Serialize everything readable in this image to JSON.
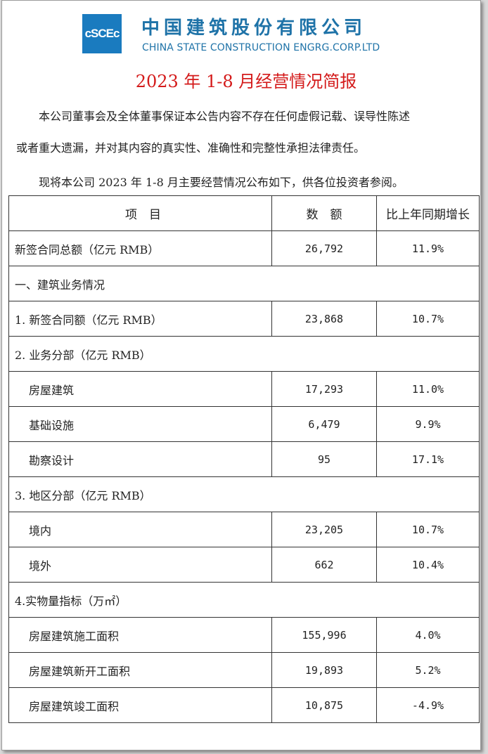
{
  "header": {
    "logo_text": "cSCEc",
    "company_cn": "中国建筑股份有限公司",
    "company_en": "CHINA STATE CONSTRUCTION ENGRG.CORP.LTD",
    "title": "2023 年 1-8 月经营情况简报"
  },
  "body": {
    "statement_line1": "本公司董事会及全体董事保证本公告内容不存在任何虚假记载、误导性陈述",
    "statement_line2": "或者重大遗漏，并对其内容的真实性、准确性和完整性承担法律责任。",
    "intro": "现将本公司 2023 年 1-8 月主要经营情况公布如下，供各位投资者参阅。"
  },
  "table": {
    "headers": [
      "项　目",
      "数　额",
      "比上年同期增长"
    ],
    "rows": [
      {
        "item": "新签合同总额（亿元 RMB）",
        "value": "26,792",
        "growth": "11.9%"
      },
      {
        "item": "一、建筑业务情况",
        "value": "",
        "growth": "",
        "section": true
      },
      {
        "item": "1.  新签合同额（亿元 RMB）",
        "value": "23,868",
        "growth": "10.7%"
      },
      {
        "item": "2.  业务分部（亿元 RMB）",
        "value": "",
        "growth": "",
        "section": true
      },
      {
        "item": "房屋建筑",
        "value": "17,293",
        "growth": "11.0%",
        "indent": true
      },
      {
        "item": "基础设施",
        "value": "6,479",
        "growth": "9.9%",
        "indent": true
      },
      {
        "item": "勘察设计",
        "value": "95",
        "growth": "17.1%",
        "indent": true
      },
      {
        "item": "3.  地区分部（亿元 RMB）",
        "value": "",
        "growth": "",
        "section": true
      },
      {
        "item": "境内",
        "value": "23,205",
        "growth": "10.7%",
        "indent": true
      },
      {
        "item": "境外",
        "value": "662",
        "growth": "10.4%",
        "indent": true
      },
      {
        "item": "4.实物量指标（万㎡）",
        "value": "",
        "growth": "",
        "section": true
      },
      {
        "item": "房屋建筑施工面积",
        "value": "155,996",
        "growth": "4.0%",
        "indent": true
      },
      {
        "item": "房屋建筑新开工面积",
        "value": "19,893",
        "growth": "5.2%",
        "indent": true
      },
      {
        "item": "房屋建筑竣工面积",
        "value": "10,875",
        "growth": "-4.9%",
        "indent": true
      }
    ]
  }
}
